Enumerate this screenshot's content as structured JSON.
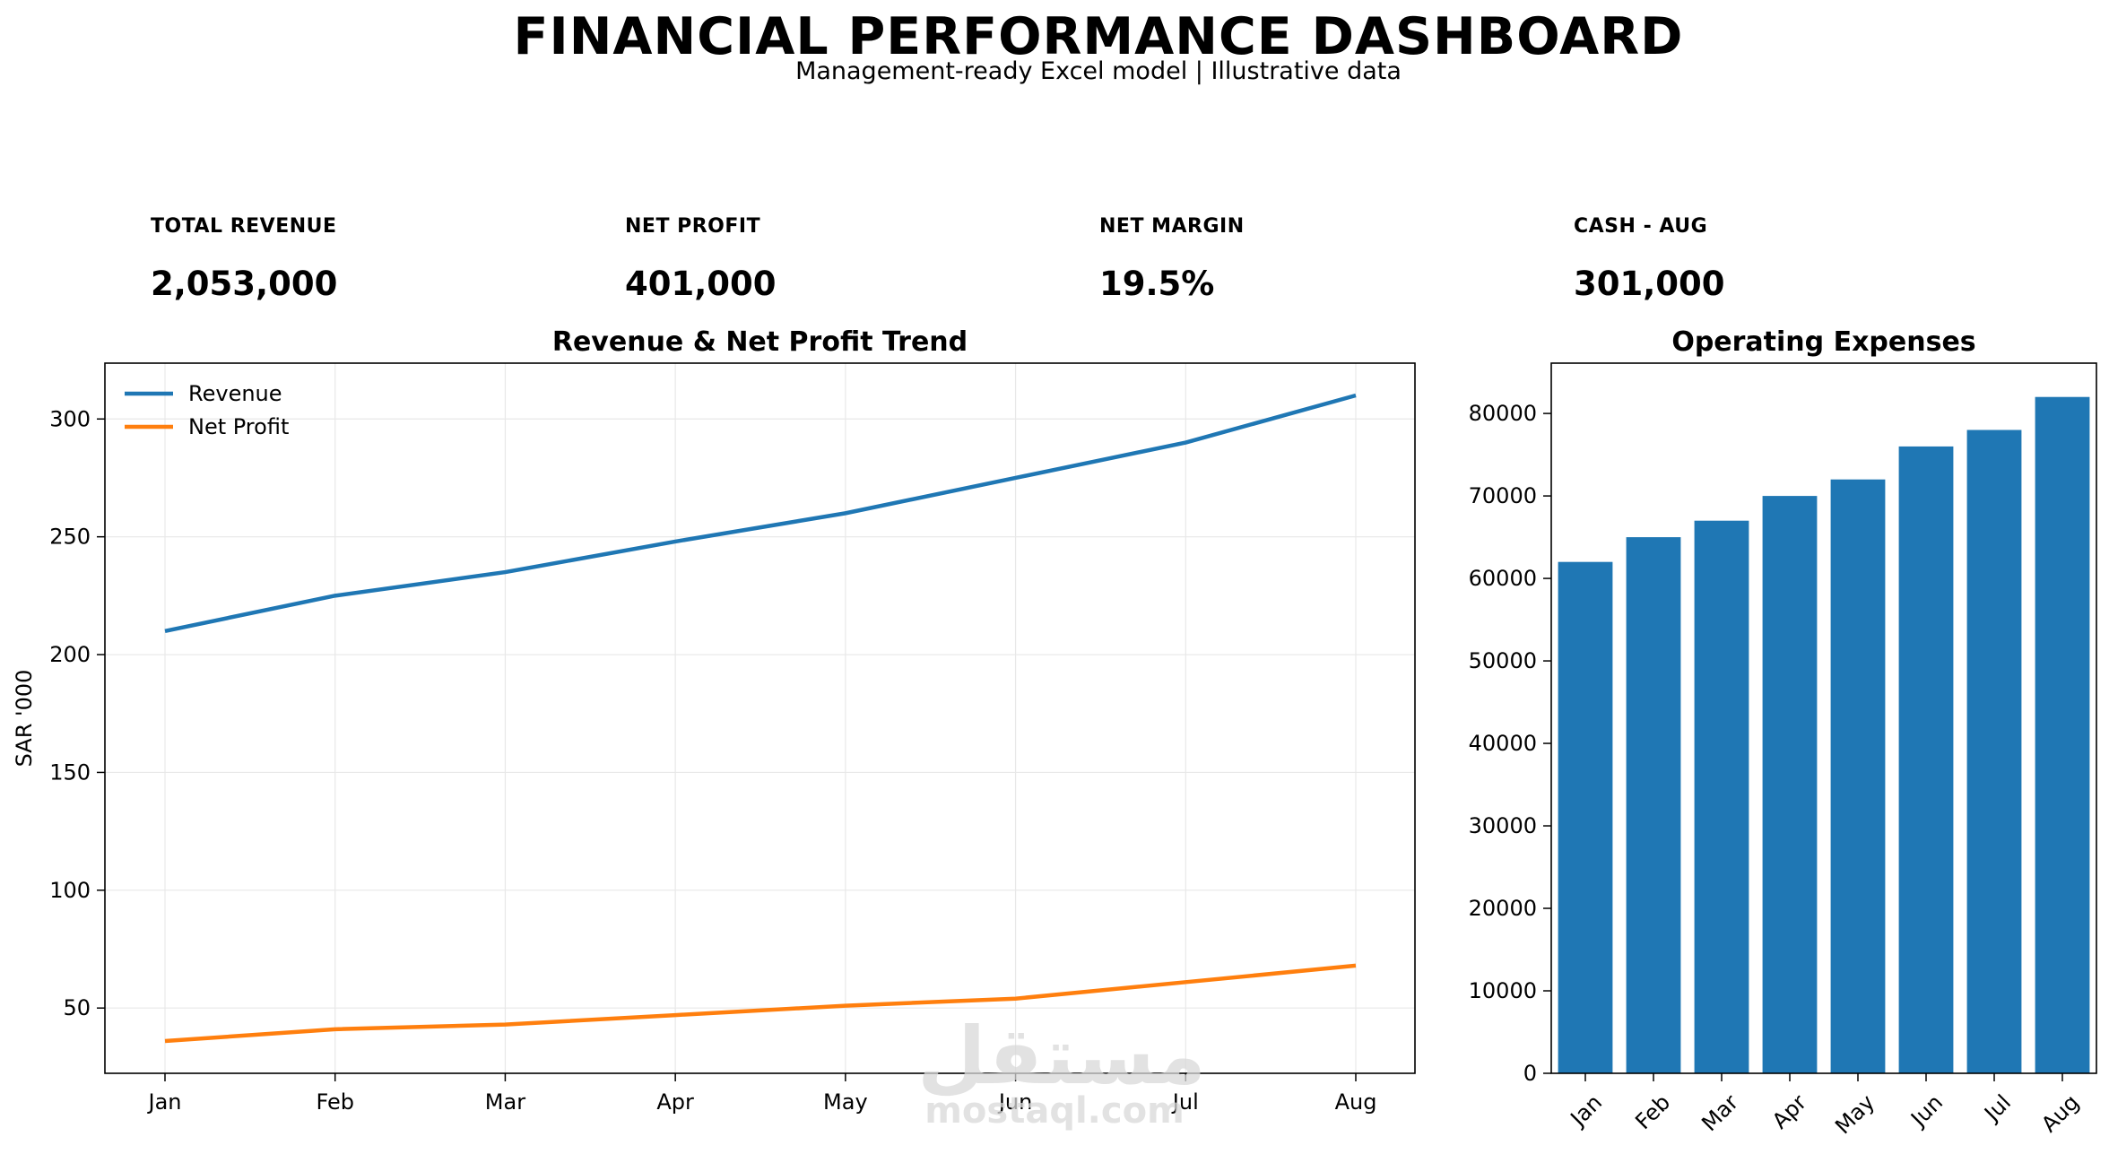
{
  "header": {
    "title": "FINANCIAL PERFORMANCE DASHBOARD",
    "subtitle": "Management-ready Excel model | Illustrative data"
  },
  "kpis": [
    {
      "label": "TOTAL REVENUE",
      "value": "2,053,000"
    },
    {
      "label": "NET PROFIT",
      "value": "401,000"
    },
    {
      "label": "NET MARGIN",
      "value": "19.5%"
    },
    {
      "label": "CASH - AUG",
      "value": "301,000"
    }
  ],
  "watermark": {
    "arabic": "مستقل",
    "latin": "mostaql.com"
  },
  "colors": {
    "revenue": "#1f77b4",
    "net_profit": "#ff7f0e",
    "bars": "#1f77b4"
  },
  "chart_data": [
    {
      "type": "line",
      "title": "Revenue & Net Profit Trend",
      "xlabel": "",
      "ylabel": "SAR '000",
      "categories": [
        "Jan",
        "Feb",
        "Mar",
        "Apr",
        "May",
        "Jun",
        "Jul",
        "Aug"
      ],
      "series": [
        {
          "name": "Revenue",
          "values": [
            210,
            225,
            235,
            248,
            260,
            275,
            290,
            310
          ]
        },
        {
          "name": "Net Profit",
          "values": [
            36,
            41,
            43,
            47,
            51,
            54,
            61,
            68
          ]
        }
      ],
      "yticks": [
        50,
        100,
        150,
        200,
        250,
        300
      ],
      "ylim": [
        22.3,
        323.7
      ],
      "grid": true,
      "legend": "top-left"
    },
    {
      "type": "bar",
      "title": "Operating Expenses",
      "categories": [
        "Jan",
        "Feb",
        "Mar",
        "Apr",
        "May",
        "Jun",
        "Jul",
        "Aug"
      ],
      "values": [
        62000,
        65000,
        67000,
        70000,
        72000,
        76000,
        78000,
        82000
      ],
      "yticks": [
        0,
        10000,
        20000,
        30000,
        40000,
        50000,
        60000,
        70000,
        80000
      ],
      "ylim": [
        0,
        86100
      ],
      "grid": false,
      "xtick_rotation": 45
    }
  ]
}
